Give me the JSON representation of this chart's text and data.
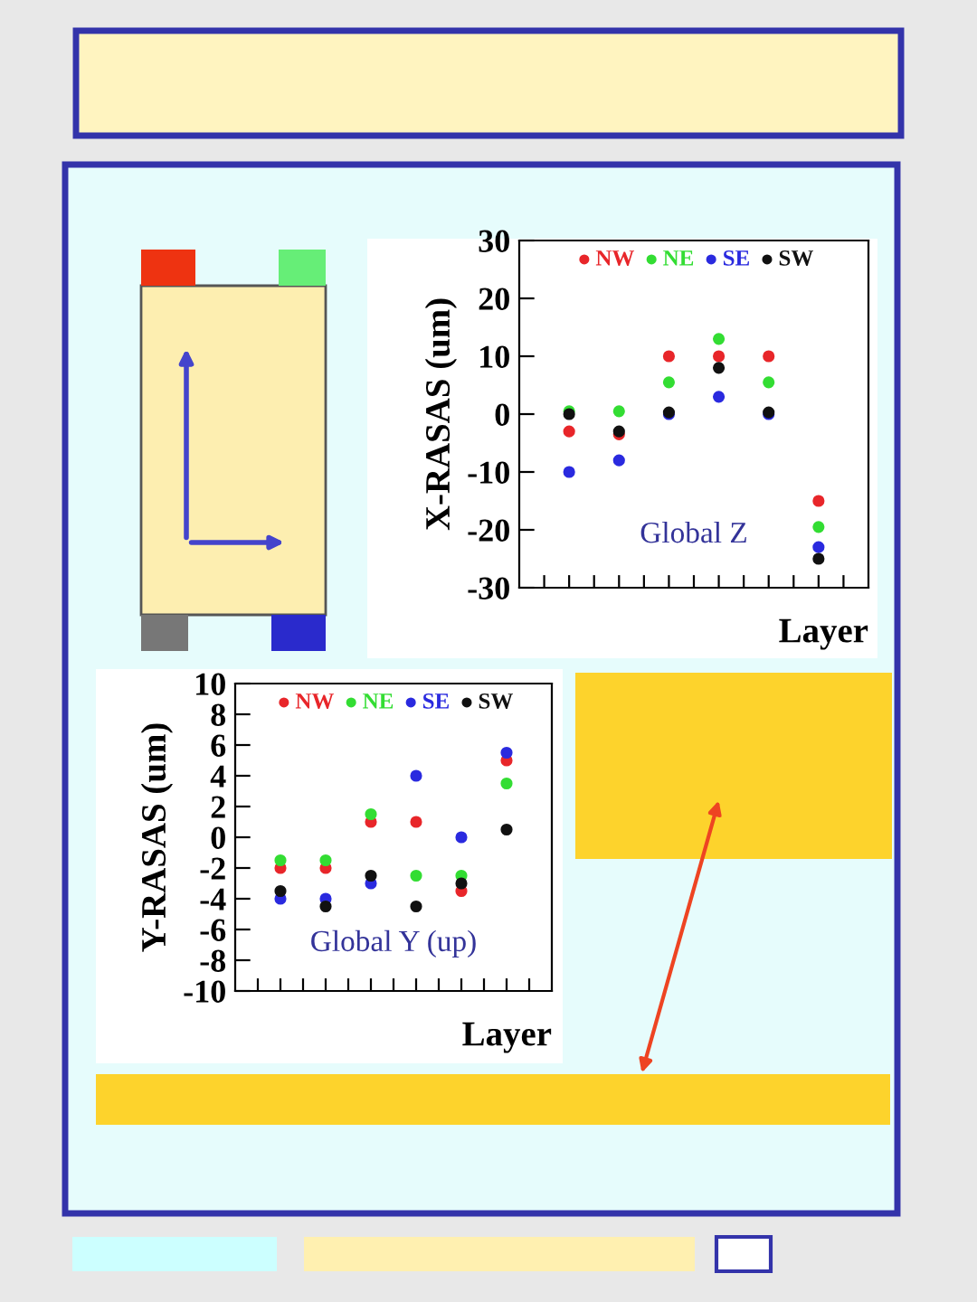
{
  "chart_data": [
    {
      "type": "scatter",
      "xlabel": "Layer",
      "ylabel": "X-RASAS (um)",
      "annotations": [
        "Global Z"
      ],
      "categories": [
        null,
        null,
        null,
        null,
        null,
        null
      ],
      "series": [
        {
          "name": "NW",
          "color": "#e8262a",
          "values": [
            -3,
            -3.5,
            10,
            10,
            10,
            -15
          ]
        },
        {
          "name": "NE",
          "color": "#33dd33",
          "values": [
            0.5,
            0.5,
            5.5,
            13,
            5.5,
            -19.5
          ]
        },
        {
          "name": "SE",
          "color": "#2a2adf",
          "values": [
            -10,
            -8,
            0,
            3,
            0,
            -23
          ]
        },
        {
          "name": "SW",
          "color": "#111111",
          "values": [
            0,
            -3,
            0.3,
            8,
            0.3,
            -25
          ]
        }
      ],
      "ylim": [
        -30,
        30
      ],
      "yticks": [
        -30,
        -20,
        -10,
        0,
        10,
        20,
        30
      ],
      "tick_labels": "y",
      "legend": "top",
      "marker": "circle"
    },
    {
      "type": "scatter",
      "xlabel": "Layer",
      "ylabel": "Y-RASAS (um)",
      "annotations": [
        "Global Y (up)"
      ],
      "categories": [
        null,
        null,
        null,
        null,
        null,
        null
      ],
      "series": [
        {
          "name": "NW",
          "color": "#e8262a",
          "values": [
            -2,
            -2,
            1,
            1,
            -3.5,
            5
          ]
        },
        {
          "name": "NE",
          "color": "#33dd33",
          "values": [
            -1.5,
            -1.5,
            1.5,
            -2.5,
            -2.5,
            3.5
          ]
        },
        {
          "name": "SE",
          "color": "#2a2adf",
          "values": [
            -4,
            -4,
            -3,
            4,
            0,
            5.5
          ]
        },
        {
          "name": "SW",
          "color": "#111111",
          "values": [
            -3.5,
            -4.5,
            -2.5,
            -4.5,
            -3,
            0.5
          ]
        }
      ],
      "ylim": [
        -10,
        10
      ],
      "yticks": [
        -10,
        -8,
        -6,
        -4,
        -2,
        0,
        2,
        4,
        6,
        8,
        10
      ],
      "tick_labels": "y",
      "legend": "top",
      "marker": "circle"
    }
  ]
}
